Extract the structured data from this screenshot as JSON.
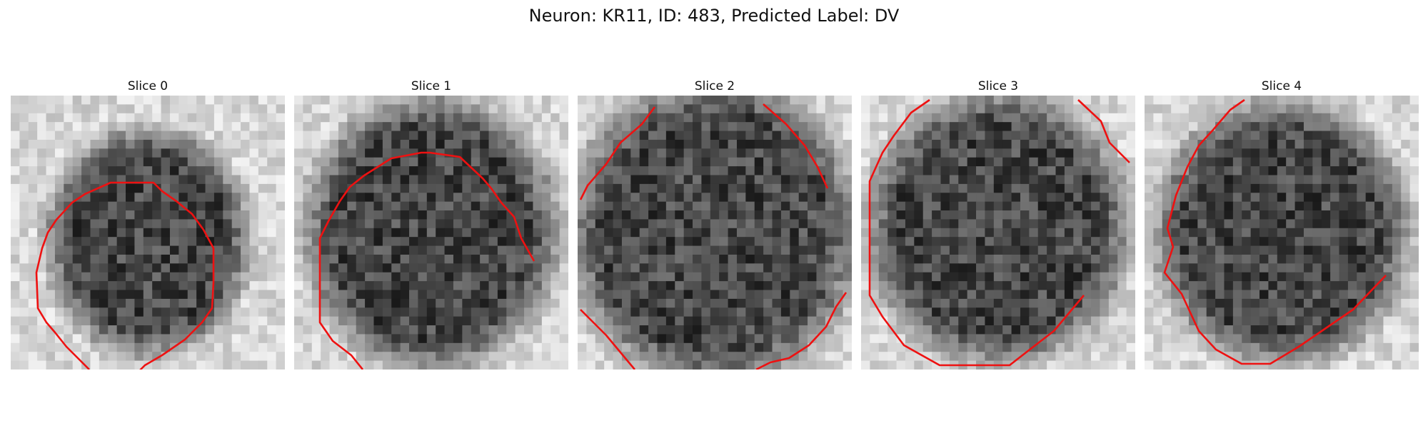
{
  "figure": {
    "title": "Neuron: KR11, ID: 483, Predicted Label: DV"
  },
  "slices": [
    {
      "label": "Slice 0"
    },
    {
      "label": "Slice 1"
    },
    {
      "label": "Slice 2"
    },
    {
      "label": "Slice 3"
    },
    {
      "label": "Slice 4"
    }
  ],
  "colors": {
    "contour": "#ee1111",
    "background": "#ffffff"
  }
}
